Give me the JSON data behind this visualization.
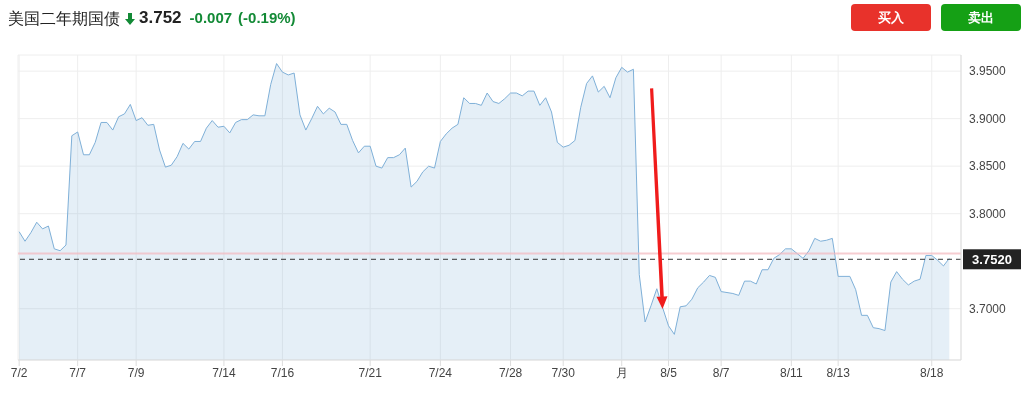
{
  "chart_data": {
    "type": "area",
    "title": "美国二年期国债",
    "annotations": [
      "3.752",
      "-0.007",
      "(-0.19%)",
      "买入",
      "卖出"
    ],
    "categories": [
      "7/2",
      null,
      null,
      null,
      null,
      null,
      null,
      null,
      null,
      null,
      "7/7",
      null,
      null,
      null,
      null,
      null,
      null,
      null,
      null,
      null,
      "7/9",
      null,
      null,
      null,
      null,
      null,
      null,
      null,
      null,
      null,
      null,
      null,
      null,
      null,
      null,
      "7/14",
      null,
      null,
      null,
      null,
      null,
      null,
      null,
      null,
      null,
      "7/16",
      null,
      null,
      null,
      null,
      null,
      null,
      null,
      null,
      null,
      null,
      null,
      null,
      null,
      null,
      "7/21",
      null,
      null,
      null,
      null,
      null,
      null,
      null,
      null,
      null,
      null,
      null,
      "7/24",
      null,
      null,
      null,
      null,
      null,
      null,
      null,
      null,
      null,
      null,
      null,
      "7/28",
      null,
      null,
      null,
      null,
      null,
      null,
      null,
      null,
      "7/30",
      null,
      null,
      null,
      null,
      null,
      null,
      null,
      null,
      null,
      "月",
      null,
      null,
      null,
      null,
      null,
      null,
      null,
      "8/5",
      null,
      null,
      null,
      null,
      null,
      null,
      null,
      null,
      "8/7",
      null,
      null,
      null,
      null,
      null,
      null,
      null,
      null,
      null,
      null,
      null,
      "8/11",
      null,
      null,
      null,
      null,
      null,
      null,
      null,
      "8/13",
      null,
      null,
      null,
      null,
      null,
      null,
      null,
      null,
      null,
      null,
      null,
      null,
      null,
      null,
      null,
      "8/18",
      null,
      null,
      null
    ],
    "series": [
      {
        "color": "#7fb0d8",
        "values": [
          3.781,
          3.771,
          3.78,
          3.791,
          3.784,
          3.787,
          3.763,
          3.761,
          3.767,
          3.882,
          3.886,
          3.862,
          3.862,
          3.875,
          3.896,
          3.896,
          3.888,
          3.902,
          3.905,
          3.915,
          3.898,
          3.901,
          3.893,
          3.894,
          3.867,
          3.849,
          3.851,
          3.86,
          3.874,
          3.868,
          3.876,
          3.876,
          3.89,
          3.898,
          3.891,
          3.892,
          3.885,
          3.896,
          3.899,
          3.899,
          3.904,
          3.903,
          3.903,
          3.936,
          3.958,
          3.949,
          3.946,
          3.948,
          3.904,
          3.888,
          3.9,
          3.913,
          3.905,
          3.911,
          3.907,
          3.894,
          3.894,
          3.877,
          3.864,
          3.871,
          3.871,
          3.85,
          3.848,
          3.859,
          3.859,
          3.862,
          3.869,
          3.828,
          3.834,
          3.844,
          3.85,
          3.848,
          3.876,
          3.884,
          3.89,
          3.894,
          3.922,
          3.916,
          3.916,
          3.914,
          3.927,
          3.918,
          3.916,
          3.921,
          3.927,
          3.927,
          3.924,
          3.929,
          3.929,
          3.914,
          3.922,
          3.907,
          3.875,
          3.87,
          3.872,
          3.877,
          3.912,
          3.937,
          3.945,
          3.928,
          3.934,
          3.922,
          3.943,
          3.954,
          3.949,
          3.952,
          3.736,
          3.686,
          3.703,
          3.721,
          3.701,
          3.682,
          3.673,
          3.702,
          3.703,
          3.71,
          3.722,
          3.728,
          3.735,
          3.733,
          3.718,
          3.717,
          3.716,
          3.714,
          3.729,
          3.729,
          3.726,
          3.741,
          3.741,
          3.753,
          3.757,
          3.763,
          3.763,
          3.758,
          3.753,
          3.761,
          3.774,
          3.771,
          3.772,
          3.774,
          3.734,
          3.734,
          3.734,
          3.72,
          3.693,
          3.693,
          3.68,
          3.679,
          3.677,
          3.728,
          3.739,
          3.731,
          3.725,
          3.729,
          3.731,
          3.756,
          3.756,
          3.751,
          3.745,
          3.753
        ]
      }
    ],
    "ylim": [
      3.646,
      3.967
    ],
    "yticks": [
      {
        "value": 3.7,
        "label": "3.7000"
      },
      {
        "value": 3.8,
        "label": "3.8000"
      },
      {
        "value": 3.85,
        "label": "3.8500"
      },
      {
        "value": 3.9,
        "label": "3.9000"
      },
      {
        "value": 3.95,
        "label": "3.9500"
      }
    ],
    "grid": true,
    "marker": "none",
    "ref_lines": [
      {
        "axis": "y",
        "value": 3.758,
        "color": "#f4b8bd",
        "line_style": "solid"
      },
      {
        "axis": "y",
        "value": 3.752,
        "label": "3.7520",
        "color": "#333333",
        "line_style": "dashed"
      }
    ]
  }
}
